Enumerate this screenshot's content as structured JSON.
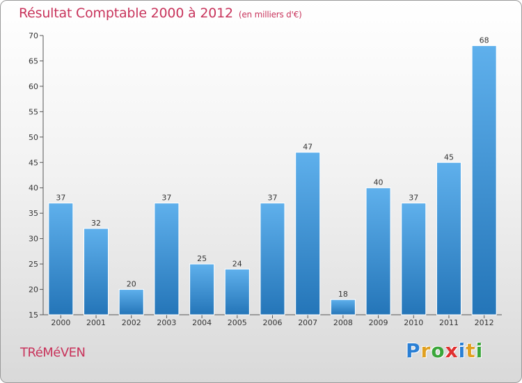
{
  "chart_data": {
    "type": "bar",
    "title": "Résultat Comptable 2000 à 2012",
    "subtitle": "(en milliers d'€)",
    "categories": [
      "2000",
      "2001",
      "2002",
      "2003",
      "2004",
      "2005",
      "2006",
      "2007",
      "2008",
      "2009",
      "2010",
      "2011",
      "2012"
    ],
    "values": [
      37,
      32,
      20,
      37,
      25,
      24,
      37,
      47,
      18,
      40,
      37,
      45,
      68
    ],
    "ylim": [
      15,
      70
    ],
    "yticks": [
      15,
      20,
      25,
      30,
      35,
      40,
      45,
      50,
      55,
      60,
      65,
      70
    ],
    "grid": false,
    "xlabel": "",
    "ylabel": "",
    "bar_color": "#2f86cf"
  },
  "footer": {
    "commune": "TRéMéVEN",
    "logo_letters": [
      "P",
      "r",
      "o",
      "x",
      "i",
      "t",
      "i"
    ],
    "logo_colors": [
      "#2a7fd4",
      "#e0a020",
      "#3aa63a",
      "#e03030",
      "#2a7fd4",
      "#e0a020",
      "#3aa63a"
    ]
  },
  "colors": {
    "title": "#c8335b",
    "axis": "#555555"
  }
}
